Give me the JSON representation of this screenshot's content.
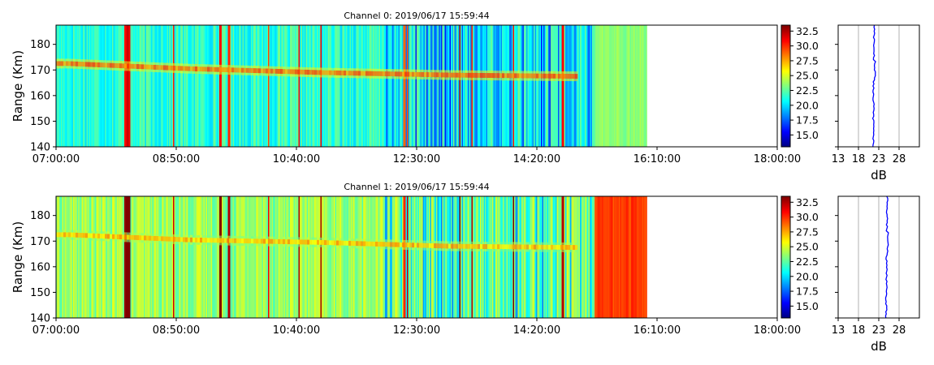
{
  "chart_data": [
    {
      "type": "heatmap",
      "title": "Channel 0: 2019/06/17 15:59:44",
      "ylabel": "Range (Km)",
      "xlabel": "",
      "x_ticks": [
        "07:00:00",
        "08:50:00",
        "10:40:00",
        "12:30:00",
        "14:20:00",
        "16:10:00",
        "18:00:00"
      ],
      "x_range": [
        "07:00:00",
        "18:00:00"
      ],
      "data_end": "15:59:44",
      "y_ticks": [
        140,
        150,
        160,
        170,
        180
      ],
      "y_range": [
        140,
        187.5
      ],
      "colorbar": {
        "ticks": [
          15.0,
          17.5,
          20.0,
          22.5,
          25.0,
          27.5,
          30.0,
          32.5
        ],
        "range": [
          13.0,
          33.5
        ],
        "colormap": "jet"
      },
      "background_level_db": 21.5,
      "echo_trace": {
        "time": [
          "07:10:00",
          "09:00:00",
          "11:00:00",
          "13:00:00",
          "15:00:00"
        ],
        "range_km": [
          172.5,
          170.5,
          169.0,
          168.0,
          167.5
        ],
        "level_db": 28.5
      },
      "profile": {
        "xlabel": "dB",
        "x_ticks": [
          13,
          18,
          23,
          28
        ],
        "x_range": [
          13,
          33
        ],
        "mean_db": 21.6,
        "color": "#0000ff"
      }
    },
    {
      "type": "heatmap",
      "title": "Channel 1: 2019/06/17 15:59:44",
      "ylabel": "Range (Km)",
      "xlabel": "",
      "x_ticks": [
        "07:00:00",
        "08:50:00",
        "10:40:00",
        "12:30:00",
        "14:20:00",
        "16:10:00",
        "18:00:00"
      ],
      "x_range": [
        "07:00:00",
        "18:00:00"
      ],
      "data_end": "15:59:44",
      "y_ticks": [
        140,
        150,
        160,
        170,
        180
      ],
      "y_range": [
        140,
        187.5
      ],
      "colorbar": {
        "ticks": [
          15.0,
          17.5,
          20.0,
          22.5,
          25.0,
          27.5,
          30.0,
          32.5
        ],
        "range": [
          13.0,
          33.5
        ],
        "colormap": "jet"
      },
      "background_level_db": 23.8,
      "echo_trace": {
        "time": [
          "07:10:00",
          "09:00:00",
          "11:00:00",
          "13:00:00",
          "15:00:00"
        ],
        "range_km": [
          172.5,
          170.5,
          169.5,
          168.0,
          167.5
        ],
        "level_db": 27.0
      },
      "profile": {
        "xlabel": "dB",
        "x_ticks": [
          13,
          18,
          23,
          28
        ],
        "x_range": [
          13,
          33
        ],
        "mean_db": 24.8,
        "color": "#0000ff"
      }
    }
  ]
}
